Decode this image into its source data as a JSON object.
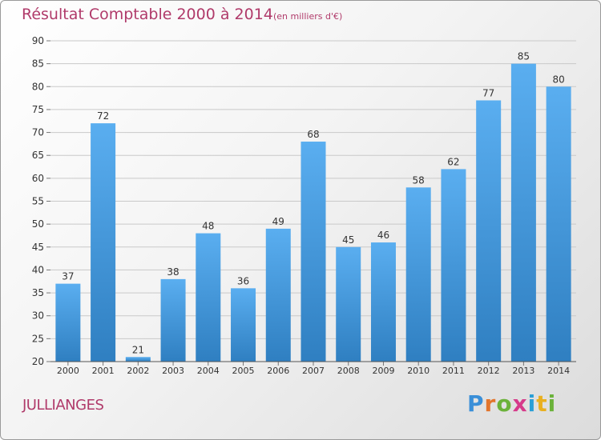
{
  "title": "Résultat Comptable 2000 à 2014",
  "subtitle": "(en milliers d'€)",
  "commune": "JULLIANGES",
  "logo": {
    "letters": [
      "P",
      "r",
      "o",
      "x",
      "i",
      "t",
      "i"
    ],
    "colors": [
      "#3a8fd8",
      "#e2752c",
      "#6bb23a",
      "#d63a8a",
      "#2a9fd6",
      "#e9b020",
      "#6bb23a"
    ]
  },
  "colors": {
    "bar_top": "#5aaef0",
    "bar_bottom": "#2f7fc1",
    "title": "#b03a6a",
    "grid": "#c9c9c9"
  },
  "chart_data": {
    "type": "bar",
    "title": "Résultat Comptable 2000 à 2014",
    "subtitle": "(en milliers d'€)",
    "categories": [
      "2000",
      "2001",
      "2002",
      "2003",
      "2004",
      "2005",
      "2006",
      "2007",
      "2008",
      "2009",
      "2010",
      "2011",
      "2012",
      "2013",
      "2014"
    ],
    "values": [
      37,
      72,
      21,
      38,
      48,
      36,
      49,
      68,
      45,
      46,
      58,
      62,
      77,
      85,
      80
    ],
    "ylim": [
      20,
      90
    ],
    "yticks": [
      20,
      25,
      30,
      35,
      40,
      45,
      50,
      55,
      60,
      65,
      70,
      75,
      80,
      85,
      90
    ],
    "grid": true,
    "xlabel": "",
    "ylabel": ""
  }
}
